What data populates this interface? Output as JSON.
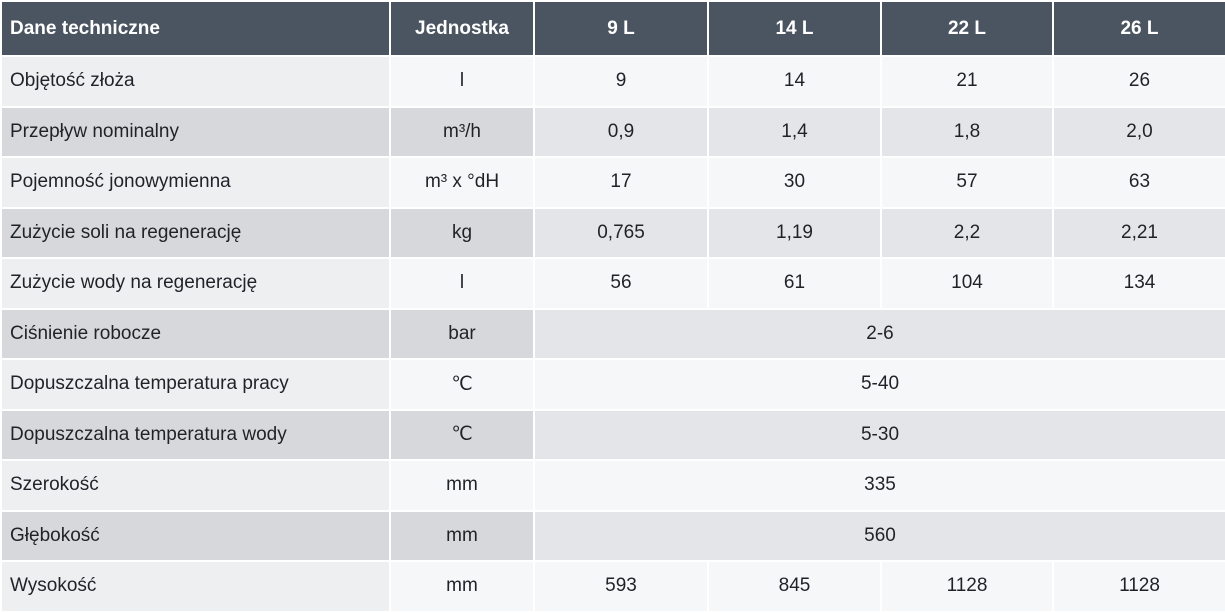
{
  "table": {
    "header": [
      "Dane techniczne",
      "Jednostka",
      "9 L",
      "14 L",
      "22 L",
      "26 L"
    ],
    "rows": [
      [
        "Objętość złoża",
        "l",
        "9",
        "14",
        "21",
        "26"
      ],
      [
        "Przepływ nominalny",
        "m³/h",
        "0,9",
        "1,4",
        "1,8",
        "2,0"
      ],
      [
        "Pojemność jonowymienna",
        "m³ x °dH",
        "17",
        "30",
        "57",
        "63"
      ],
      [
        "Zużycie soli na regenerację",
        "kg",
        "0,765",
        "1,19",
        "2,2",
        "2,21"
      ],
      [
        "Zużycie wody na regenerację",
        "l",
        "56",
        "61",
        "104",
        "134"
      ],
      [
        "Ciśnienie robocze",
        "bar",
        "2-6"
      ],
      [
        "Dopuszczalna temperatura pracy",
        "℃",
        "5-40"
      ],
      [
        "Dopuszczalna temperatura wody",
        "℃",
        "5-30"
      ],
      [
        "Szerokość",
        "mm",
        "335"
      ],
      [
        "Głębokość",
        "mm",
        "560"
      ],
      [
        "Wysokość",
        "mm",
        "593",
        "845",
        "1128",
        "1128"
      ]
    ]
  }
}
